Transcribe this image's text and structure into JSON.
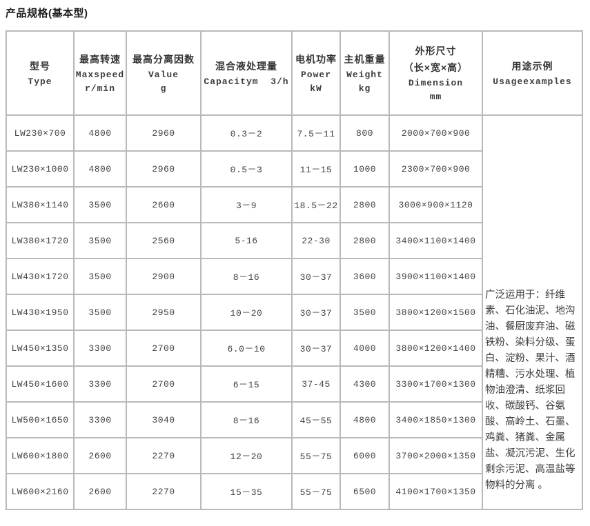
{
  "title": "产品规格(基本型)",
  "table": {
    "columns": [
      {
        "zh": "型号",
        "en": "Type"
      },
      {
        "zh": "最高转速",
        "en": "Maxspeed",
        "unit": "r/min"
      },
      {
        "zh": "最高分离因数",
        "en": "Value",
        "unit": "g"
      },
      {
        "zh": "混合液处理量",
        "en": "Capacitym  3/h"
      },
      {
        "zh": "电机功率",
        "en": "Power",
        "unit": "kW"
      },
      {
        "zh": "主机重量",
        "en": "Weight",
        "unit": "kg"
      },
      {
        "zh": "外形尺寸",
        "zh2": "（长×宽×高）",
        "en": "Dimension",
        "unit": "mm"
      },
      {
        "zh": "用途示例",
        "en": "Usageexamples"
      }
    ],
    "rows": [
      {
        "model": "LW230×700",
        "speed": "4800",
        "factor": "2960",
        "capacity": "0.3－2",
        "power": "7.5－11",
        "weight": "800",
        "dimension": "2000×700×900"
      },
      {
        "model": "LW230×1000",
        "speed": "4800",
        "factor": "2960",
        "capacity": "0.5－3",
        "power": "11－15",
        "weight": "1000",
        "dimension": "2300×700×900"
      },
      {
        "model": "LW380×1140",
        "speed": "3500",
        "factor": "2600",
        "capacity": "3－9",
        "power": "18.5－22",
        "weight": "2800",
        "dimension": "3000×900×1120"
      },
      {
        "model": "LW380×1720",
        "speed": "3500",
        "factor": "2560",
        "capacity": "5-16",
        "power": "22-30",
        "weight": "2800",
        "dimension": "3400×1100×1400"
      },
      {
        "model": "LW430×1720",
        "speed": "3500",
        "factor": "2900",
        "capacity": "8－16",
        "power": "30－37",
        "weight": "3600",
        "dimension": "3900×1100×1400"
      },
      {
        "model": "LW430×1950",
        "speed": "3500",
        "factor": "2950",
        "capacity": "10－20",
        "power": "30－37",
        "weight": "3500",
        "dimension": "3800×1200×1500"
      },
      {
        "model": "LW450×1350",
        "speed": "3300",
        "factor": "2700",
        "capacity": "6.0－10",
        "power": "30－37",
        "weight": "4000",
        "dimension": "3800×1200×1400"
      },
      {
        "model": "LW450×1600",
        "speed": "3300",
        "factor": "2700",
        "capacity": "6－15",
        "power": "37-45",
        "weight": "4300",
        "dimension": "3300×1700×1300"
      },
      {
        "model": "LW500×1650",
        "speed": "3300",
        "factor": "3040",
        "capacity": "8－16",
        "power": "45－55",
        "weight": "4800",
        "dimension": "3400×1850×1300"
      },
      {
        "model": "LW600×1800",
        "speed": "2600",
        "factor": "2270",
        "capacity": "12－20",
        "power": "55－75",
        "weight": "6000",
        "dimension": "3700×2000×1350"
      },
      {
        "model": "LW600×2160",
        "speed": "2600",
        "factor": "2270",
        "capacity": "15－35",
        "power": "55－75",
        "weight": "6500",
        "dimension": "4100×1700×1350"
      }
    ],
    "usage_text": "广泛运用于：纤维素、石化油泥、地沟油、餐厨废弃油、磁铁粉、染料分级、蛋白、淀粉、果汁、酒精糟、污水处理、植物油澄清、纸浆回收、碳酸钙、谷氨酸、高岭土、石墨、鸡粪、猪粪、金属盐、凝沉污泥、生化剩余污泥、高温盐等物料的分离 。"
  }
}
